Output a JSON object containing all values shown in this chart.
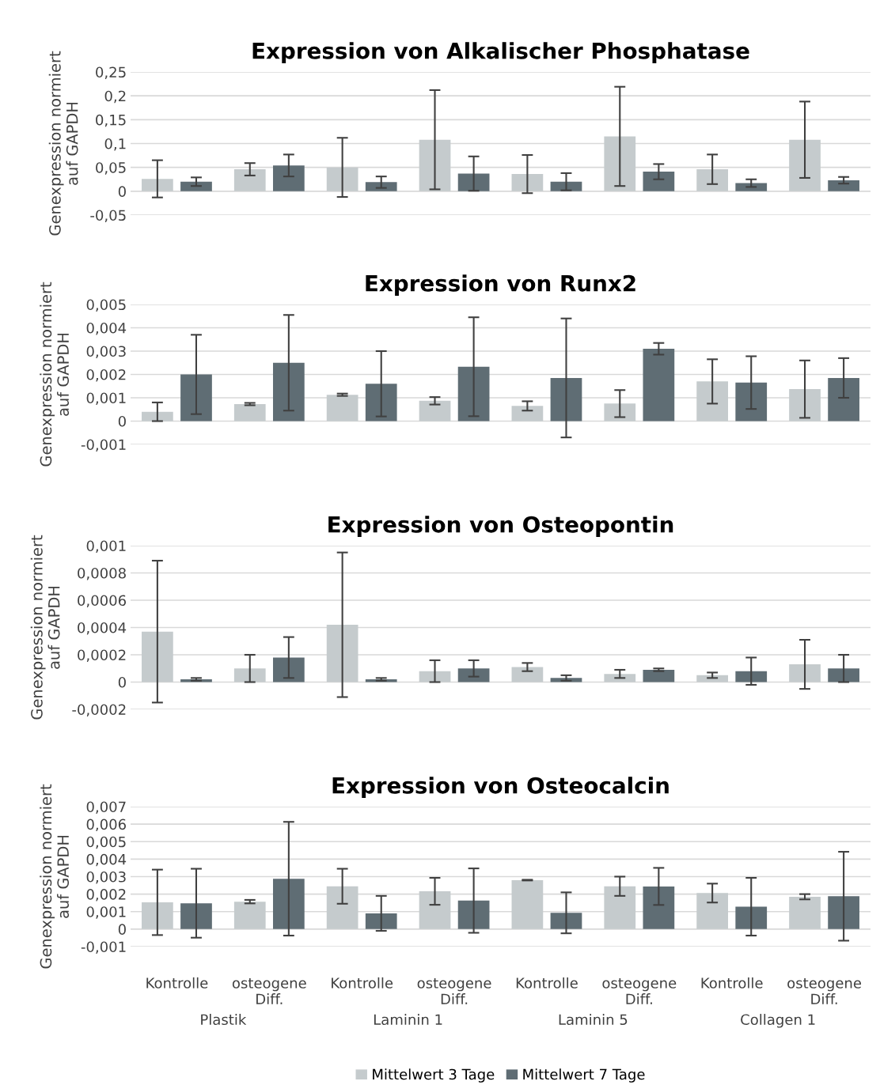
{
  "chart_data": [
    {
      "type": "bar",
      "title": "Expression von Alkalischer Phosphatase",
      "ylabel": "Genexpression normiert\nauf GAPDH",
      "categories": [
        null,
        null,
        null,
        null,
        null,
        null,
        null,
        null
      ],
      "series": [
        {
          "color": "#c5cbcd",
          "values": [
            0.026,
            0.046,
            0.05,
            0.108,
            0.036,
            0.115,
            0.046,
            0.108
          ],
          "errors": [
            0.039,
            0.013,
            0.062,
            0.104,
            0.04,
            0.104,
            0.031,
            0.08
          ]
        },
        {
          "color": "#5f6d74",
          "values": [
            0.02,
            0.054,
            0.019,
            0.037,
            0.02,
            0.041,
            0.017,
            0.023
          ],
          "errors": [
            0.009,
            0.023,
            0.012,
            0.036,
            0.018,
            0.016,
            0.008,
            0.007
          ]
        }
      ],
      "ylim": [
        -0.05,
        0.25
      ],
      "yticks": [
        {
          "value": -0.05,
          "label": "-0,05"
        },
        0,
        {
          "value": 0.05,
          "label": "0,05"
        },
        {
          "value": 0.1,
          "label": "0,1"
        },
        {
          "value": 0.15,
          "label": "0,15"
        },
        {
          "value": 0.2,
          "label": "0,2"
        },
        {
          "value": 0.25,
          "label": "0,25"
        }
      ],
      "grid": "y",
      "tick_labels": "y"
    },
    {
      "type": "bar",
      "title": "Expression von Runx2",
      "ylabel": "Genexpression normiert\nauf GAPDH",
      "categories": [
        null,
        null,
        null,
        null,
        null,
        null,
        null,
        null
      ],
      "series": [
        {
          "color": "#c5cbcd",
          "values": [
            0.0004,
            0.00073,
            0.00113,
            0.00087,
            0.00065,
            0.00075,
            0.0017,
            0.00137
          ],
          "errors": [
            0.0004,
            5e-05,
            5e-05,
            0.00016,
            0.0002,
            0.00058,
            0.00095,
            0.00123
          ]
        },
        {
          "color": "#5f6d74",
          "values": [
            0.002,
            0.0025,
            0.0016,
            0.00233,
            0.00185,
            0.0031,
            0.00165,
            0.00185
          ],
          "errors": [
            0.0017,
            0.00205,
            0.0014,
            0.00212,
            0.00255,
            0.00025,
            0.00113,
            0.00085
          ]
        }
      ],
      "ylim": [
        -0.001,
        0.005
      ],
      "yticks": [
        {
          "value": -0.001,
          "label": "-0,001"
        },
        0,
        {
          "value": 0.001,
          "label": "0,001"
        },
        {
          "value": 0.002,
          "label": "0,002"
        },
        {
          "value": 0.003,
          "label": "0,003"
        },
        {
          "value": 0.004,
          "label": "0,004"
        },
        {
          "value": 0.005,
          "label": "0,005"
        }
      ],
      "grid": "y",
      "tick_labels": "y"
    },
    {
      "type": "bar",
      "title": "Expression von Osteopontin",
      "ylabel": "Genexpression normiert\nauf GAPDH",
      "categories": [
        null,
        null,
        null,
        null,
        null,
        null,
        null,
        null
      ],
      "series": [
        {
          "color": "#c5cbcd",
          "values": [
            0.00037,
            0.0001,
            0.00042,
            8e-05,
            0.00011,
            6e-05,
            5e-05,
            0.00013
          ],
          "errors": [
            0.00052,
            0.0001,
            0.00053,
            8e-05,
            3e-05,
            3e-05,
            2e-05,
            0.00018
          ]
        },
        {
          "color": "#5f6d74",
          "values": [
            2e-05,
            0.00018,
            2e-05,
            0.0001,
            3e-05,
            9e-05,
            8e-05,
            0.0001
          ],
          "errors": [
            1e-05,
            0.00015,
            1e-05,
            6e-05,
            2e-05,
            1e-05,
            0.0001,
            0.0001
          ]
        }
      ],
      "ylim": [
        -0.0002,
        0.001
      ],
      "yticks": [
        {
          "value": -0.0002,
          "label": "-0,0002"
        },
        0,
        {
          "value": 0.0002,
          "label": "0,0002"
        },
        {
          "value": 0.0004,
          "label": "0,0004"
        },
        {
          "value": 0.0006,
          "label": "0,0006"
        },
        {
          "value": 0.0008,
          "label": "0,0008"
        },
        {
          "value": 0.001,
          "label": "0,001"
        }
      ],
      "grid": "y",
      "tick_labels": "y"
    },
    {
      "type": "bar",
      "title": "Expression von Osteocalcin",
      "ylabel": "Genexpression normiert\nauf GAPDH",
      "categories": [
        "Kontrolle",
        "osteogene Diff.",
        "Kontrolle",
        "osteogene Diff.",
        "Kontrolle",
        "osteogene Diff.",
        "Kontrolle",
        "osteogene Diff."
      ],
      "series": [
        {
          "name": "Mittelwert 3 Tage",
          "color": "#c5cbcd",
          "values": [
            0.00153,
            0.00157,
            0.00245,
            0.00216,
            0.0028,
            0.00245,
            0.00206,
            0.00185
          ],
          "errors": [
            0.00187,
            0.0001,
            0.001,
            0.00077,
            2e-05,
            0.00055,
            0.00054,
            0.00015
          ]
        },
        {
          "name": "Mittelwert 7 Tage",
          "color": "#5f6d74",
          "values": [
            0.00148,
            0.00288,
            0.0009,
            0.00163,
            0.00093,
            0.00244,
            0.00128,
            0.00188
          ],
          "errors": [
            0.00197,
            0.00325,
            0.001,
            0.00184,
            0.00117,
            0.00106,
            0.00165,
            0.00254
          ]
        }
      ],
      "ylim": [
        -0.001,
        0.007
      ],
      "yticks": [
        {
          "value": -0.001,
          "label": "-0,001"
        },
        0,
        {
          "value": 0.001,
          "label": "0,001"
        },
        {
          "value": 0.002,
          "label": "0,002"
        },
        {
          "value": 0.003,
          "label": "0,003"
        },
        {
          "value": 0.004,
          "label": "0,004"
        },
        {
          "value": 0.005,
          "label": "0,005"
        },
        {
          "value": 0.006,
          "label": "0,006"
        },
        {
          "value": 0.007,
          "label": "0,007"
        }
      ],
      "annotations": [
        "Plastik",
        "Laminin 1",
        "Laminin 5",
        "Collagen 1"
      ],
      "grid": "y",
      "legend": "bottom"
    }
  ]
}
